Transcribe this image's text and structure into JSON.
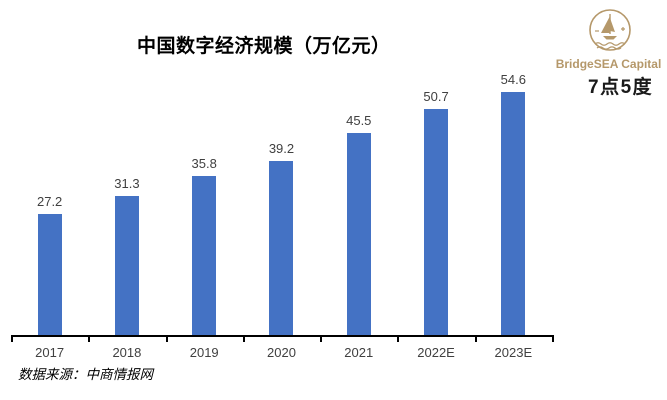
{
  "chart_data": {
    "type": "bar",
    "title": "中国数字经济规模（万亿元）",
    "categories": [
      "2017",
      "2018",
      "2019",
      "2020",
      "2021",
      "2022E",
      "2023E"
    ],
    "values": [
      27.2,
      31.3,
      35.8,
      39.2,
      45.5,
      50.7,
      54.6
    ],
    "value_labels": [
      "27.2",
      "31.3",
      "35.8",
      "39.2",
      "45.5",
      "50.7",
      "54.6"
    ],
    "xlabel": "",
    "ylabel": "",
    "ylim": [
      0,
      60
    ],
    "grid": false,
    "legend": false,
    "bar_color": "#4472C4",
    "axis_color": "#000000",
    "label_color": "#404040"
  },
  "brand": {
    "name": "BridgeSEA Capital",
    "sub_brand": "7点5度",
    "gold": "#B5986A",
    "mark_red": "#E0392D",
    "mark_orange": "#F9A11B",
    "mark_blue": "#3B7CBF"
  },
  "source_note": "数据来源：中商情报网"
}
